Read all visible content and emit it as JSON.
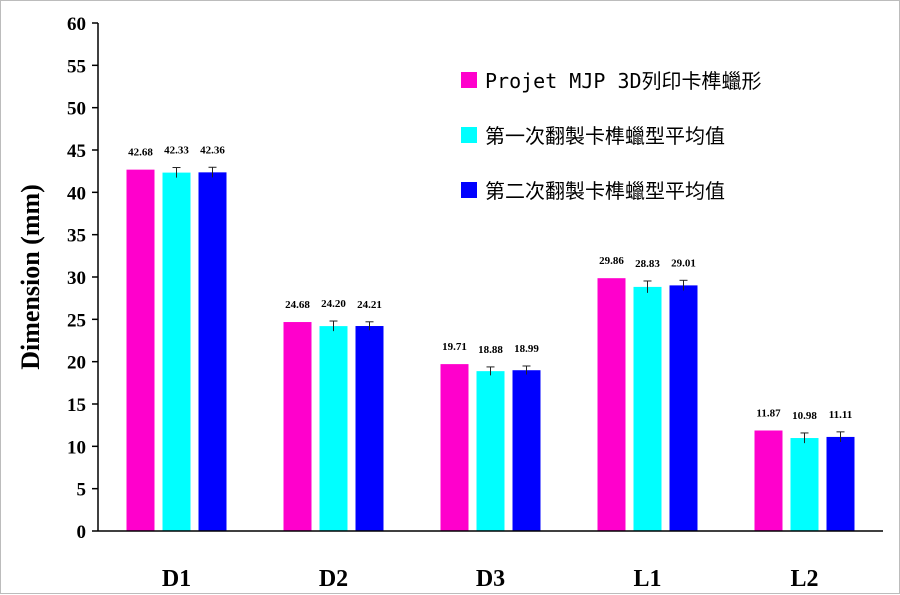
{
  "chart_data": {
    "type": "bar",
    "title": "",
    "xlabel": "",
    "ylabel": "Dimension (mm)",
    "ylim": [
      0,
      60
    ],
    "yticks": [
      0,
      5,
      10,
      15,
      20,
      25,
      30,
      35,
      40,
      45,
      50,
      55,
      60
    ],
    "grid": false,
    "legend_position": "top-right",
    "categories": [
      "D1",
      "D2",
      "D3",
      "L1",
      "L2"
    ],
    "series": [
      {
        "name": "Projet MJP 3D列印卡榫蠟形",
        "color": "#ff00cc",
        "values": [
          42.68,
          24.68,
          19.71,
          29.86,
          11.87
        ],
        "labels": [
          "42.68",
          "24.68",
          "19.71",
          "29.86",
          "11.87"
        ],
        "errors": [
          0,
          0,
          0,
          0,
          0
        ]
      },
      {
        "name": "第一次翻製卡榫蠟型平均值",
        "color": "#00ffff",
        "values": [
          42.33,
          24.2,
          18.88,
          28.83,
          10.98
        ],
        "labels": [
          "42.33",
          "24.20",
          "18.88",
          "28.83",
          "10.98"
        ],
        "errors": [
          0.6,
          0.6,
          0.5,
          0.7,
          0.6
        ]
      },
      {
        "name": "第二次翻製卡榫蠟型平均值",
        "color": "#0000ff",
        "values": [
          42.36,
          24.21,
          18.99,
          29.01,
          11.11
        ],
        "labels": [
          "42.36",
          "24.21",
          "18.99",
          "29.01",
          "11.11"
        ],
        "errors": [
          0.6,
          0.5,
          0.5,
          0.6,
          0.6
        ]
      }
    ]
  }
}
